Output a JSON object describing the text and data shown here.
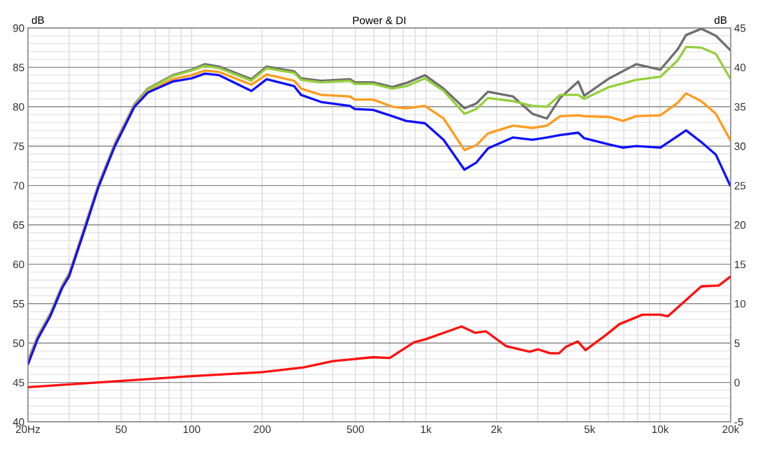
{
  "chart_data": {
    "type": "line",
    "title": "Power & DI",
    "ylabel": "dB",
    "y2label": "dB",
    "log": "x",
    "grid": true,
    "xlim": [
      20,
      20000
    ],
    "xticks": [
      {
        "value": 20,
        "label": "20Hz"
      },
      50,
      100,
      200,
      500,
      {
        "value": 1000,
        "label": "1k"
      },
      {
        "value": 2000,
        "label": "2k"
      },
      {
        "value": 5000,
        "label": "5k"
      },
      {
        "value": 10000,
        "label": "10k"
      },
      {
        "value": 20000,
        "label": "20k"
      }
    ],
    "ylim": [
      40,
      90
    ],
    "yticks": [
      40,
      45,
      50,
      55,
      60,
      65,
      70,
      75,
      80,
      85,
      90
    ],
    "y2lim": [
      -5,
      45
    ],
    "y2ticks": [
      -5,
      0,
      5,
      10,
      15,
      20,
      25,
      30,
      35,
      40,
      45
    ],
    "series": [
      {
        "color": "#6e6e6e",
        "x": [
          20,
          22,
          25,
          28,
          30,
          35,
          40,
          47,
          57,
          65,
          83,
          100,
          114,
          131,
          180,
          209,
          274,
          293,
          357,
          474,
          497,
          595,
          719,
          823,
          990,
          1190,
          1460,
          1640,
          1840,
          2355,
          2850,
          3285,
          3740,
          4470,
          4740,
          6060,
          7900,
          10020,
          11900,
          12900,
          15000,
          17300,
          19900
        ],
        "values": [
          47.8,
          50.8,
          53.8,
          57.3,
          58.8,
          64.8,
          70.1,
          75.3,
          80.3,
          82.3,
          84.0,
          84.7,
          85.4,
          85.1,
          83.5,
          85.1,
          84.5,
          83.6,
          83.3,
          83.5,
          83.1,
          83.1,
          82.5,
          83.0,
          84.0,
          82.3,
          79.8,
          80.4,
          81.9,
          81.3,
          79.1,
          78.5,
          81.1,
          83.2,
          81.4,
          83.6,
          85.4,
          84.7,
          87.3,
          89.1,
          89.9,
          89.0,
          87.2
        ]
      },
      {
        "color": "#94cf3a",
        "x": [
          20,
          22,
          25,
          28,
          30,
          35,
          40,
          47,
          57,
          65,
          83,
          100,
          114,
          131,
          180,
          209,
          274,
          293,
          357,
          474,
          497,
          595,
          719,
          823,
          990,
          1190,
          1460,
          1640,
          1840,
          2355,
          2850,
          3285,
          3740,
          4470,
          4740,
          6060,
          7900,
          10020,
          11900,
          12900,
          15000,
          17300,
          19900
        ],
        "values": [
          47.7,
          50.7,
          53.7,
          57.2,
          58.7,
          64.7,
          70.0,
          75.2,
          80.2,
          82.2,
          83.9,
          84.6,
          85.2,
          84.9,
          83.3,
          84.9,
          84.3,
          83.4,
          83.1,
          83.3,
          82.9,
          82.9,
          82.3,
          82.6,
          83.6,
          82.0,
          79.1,
          79.7,
          81.1,
          80.7,
          80.1,
          80.0,
          81.5,
          81.5,
          81.0,
          82.5,
          83.4,
          83.8,
          85.9,
          87.6,
          87.5,
          86.7,
          83.6
        ]
      },
      {
        "color": "#ff9b1e",
        "x": [
          20,
          22,
          25,
          28,
          30,
          35,
          40,
          47,
          57,
          65,
          83,
          100,
          114,
          131,
          180,
          209,
          274,
          293,
          357,
          474,
          497,
          595,
          719,
          823,
          990,
          1190,
          1460,
          1640,
          1840,
          2355,
          2850,
          3285,
          3740,
          4470,
          4740,
          6060,
          6940,
          7900,
          10020,
          11900,
          12900,
          15000,
          17300,
          19900
        ],
        "values": [
          47.5,
          50.6,
          53.6,
          57.1,
          58.6,
          64.6,
          69.9,
          75.1,
          80.1,
          81.9,
          83.5,
          84.0,
          84.6,
          84.4,
          82.8,
          84.1,
          83.3,
          82.3,
          81.5,
          81.3,
          80.9,
          80.9,
          80.0,
          79.8,
          80.1,
          78.5,
          74.5,
          75.1,
          76.6,
          77.6,
          77.3,
          77.6,
          78.8,
          78.9,
          78.8,
          78.7,
          78.2,
          78.8,
          78.9,
          80.5,
          81.7,
          80.7,
          79.1,
          75.8
        ]
      },
      {
        "color": "#1010ff",
        "x": [
          20,
          22,
          25,
          28,
          30,
          35,
          40,
          47,
          57,
          65,
          83,
          100,
          114,
          131,
          180,
          209,
          274,
          293,
          357,
          474,
          497,
          595,
          719,
          823,
          990,
          1190,
          1460,
          1640,
          1840,
          2355,
          2850,
          3285,
          3740,
          4470,
          4740,
          6060,
          6940,
          7900,
          10020,
          11900,
          12900,
          15000,
          17300,
          19900
        ],
        "values": [
          47.3,
          50.5,
          53.5,
          57.0,
          58.5,
          64.5,
          69.8,
          75.0,
          80.0,
          81.8,
          83.2,
          83.6,
          84.2,
          84.0,
          82.0,
          83.5,
          82.6,
          81.5,
          80.6,
          80.1,
          79.7,
          79.6,
          78.8,
          78.2,
          77.9,
          75.8,
          72.0,
          72.9,
          74.7,
          76.1,
          75.8,
          76.1,
          76.4,
          76.7,
          76.0,
          75.2,
          74.8,
          75.0,
          74.8,
          76.3,
          77.0,
          75.5,
          73.9,
          70.0
        ]
      },
      {
        "color": "#ff1010",
        "axis": "y2",
        "x": [
          20,
          100,
          200,
          300,
          400,
          594,
          700,
          890,
          1000,
          1420,
          1620,
          1800,
          2200,
          2770,
          3010,
          3390,
          3700,
          3950,
          4450,
          4800,
          5860,
          6700,
          8400,
          10000,
          10800,
          12400,
          15000,
          17800,
          19900
        ],
        "values": [
          -0.6,
          0.8,
          1.3,
          1.9,
          2.7,
          3.2,
          3.1,
          5.1,
          5.5,
          7.1,
          6.3,
          6.5,
          4.6,
          3.9,
          4.2,
          3.7,
          3.7,
          4.5,
          5.2,
          4.1,
          6.0,
          7.4,
          8.6,
          8.6,
          8.4,
          10.0,
          12.2,
          12.3,
          13.4
        ]
      }
    ]
  }
}
